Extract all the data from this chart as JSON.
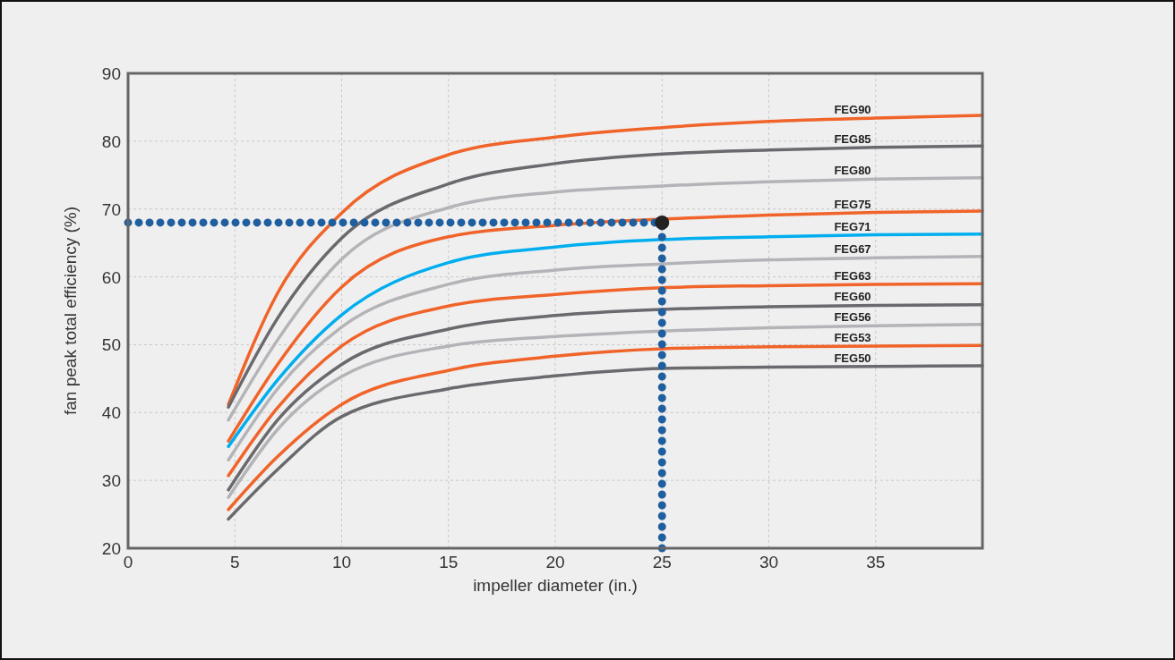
{
  "chart_data": {
    "type": "line",
    "xlabel": "impeller diameter (in.)",
    "ylabel": "fan peak total efficiency (%)",
    "xlim": [
      0,
      40
    ],
    "ylim": [
      20,
      90
    ],
    "xticks": [
      0,
      5,
      10,
      15,
      20,
      25,
      30,
      35
    ],
    "yticks": [
      20,
      30,
      40,
      50,
      60,
      70,
      80,
      90
    ],
    "grid": true,
    "line_style": "solid",
    "x": [
      4.7,
      7,
      10,
      15,
      20,
      25,
      30,
      35,
      40
    ],
    "series": [
      {
        "name": "FEG90",
        "color": "#f0642a",
        "values": [
          41.2,
          57.6,
          69.4,
          78.0,
          80.6,
          82.0,
          82.9,
          83.4,
          83.8
        ]
      },
      {
        "name": "FEG85",
        "color": "#6a6a6e",
        "values": [
          40.8,
          53.9,
          65.7,
          73.7,
          76.7,
          78.1,
          78.7,
          79.1,
          79.3
        ]
      },
      {
        "name": "FEG80",
        "color": "#b4b4b8",
        "values": [
          38.9,
          50.7,
          62.6,
          70.2,
          72.5,
          73.4,
          74.0,
          74.4,
          74.6
        ]
      },
      {
        "name": "FEG75",
        "color": "#f0642a",
        "values": [
          35.8,
          47.1,
          58.5,
          65.9,
          67.6,
          68.5,
          69.1,
          69.5,
          69.7
        ]
      },
      {
        "name": "FEG71",
        "color": "#00aeef",
        "values": [
          35.0,
          44.8,
          54.4,
          62.1,
          64.4,
          65.5,
          65.9,
          66.2,
          66.3
        ]
      },
      {
        "name": "FEG67",
        "color": "#b4b4b8",
        "values": [
          33.0,
          43.5,
          52.6,
          58.9,
          61.0,
          61.9,
          62.5,
          62.8,
          63.0
        ]
      },
      {
        "name": "FEG63",
        "color": "#f0642a",
        "values": [
          30.7,
          40.7,
          49.8,
          55.7,
          57.4,
          58.4,
          58.7,
          58.9,
          59.0
        ]
      },
      {
        "name": "FEG60",
        "color": "#6a6a6e",
        "values": [
          28.6,
          38.9,
          47.1,
          52.3,
          54.3,
          55.2,
          55.6,
          55.8,
          55.9
        ]
      },
      {
        "name": "FEG56",
        "color": "#b4b4b8",
        "values": [
          27.5,
          37.5,
          45.3,
          49.8,
          51.2,
          52.0,
          52.5,
          52.8,
          53.0
        ]
      },
      {
        "name": "FEG53",
        "color": "#f0642a",
        "values": [
          25.7,
          33.5,
          41.2,
          46.2,
          48.3,
          49.4,
          49.7,
          49.8,
          49.9
        ]
      },
      {
        "name": "FEG50",
        "color": "#6a6a6e",
        "values": [
          24.3,
          31.6,
          39.4,
          43.5,
          45.4,
          46.5,
          46.7,
          46.8,
          46.9
        ]
      },
      {
        "type": "scatter",
        "color": "#222222",
        "x": [
          25
        ],
        "values": [
          68
        ],
        "marker": "circle"
      }
    ],
    "ref_lines": [
      {
        "axis": "y",
        "value": 68,
        "color": "#1f5f9f",
        "line_style": "dotted"
      },
      {
        "axis": "x",
        "value": 25,
        "color": "#1f5f9f",
        "line_style": "dotted"
      }
    ]
  }
}
